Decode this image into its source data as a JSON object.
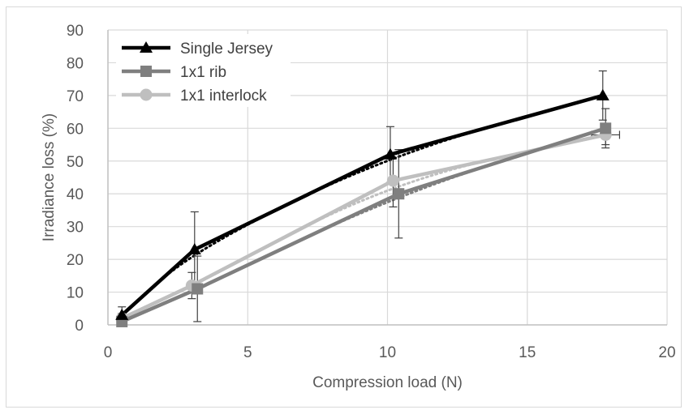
{
  "chart_data": {
    "type": "line",
    "title": "",
    "xlabel": "Compression load (N)",
    "ylabel": "Irradiance loss (%)",
    "xlim": [
      0,
      20
    ],
    "ylim": [
      0,
      90
    ],
    "xticks": [
      0,
      5,
      10,
      15,
      20
    ],
    "yticks": [
      0,
      10,
      20,
      30,
      40,
      50,
      60,
      70,
      80,
      90
    ],
    "grid": "on",
    "legend_position": "top-left",
    "series": [
      {
        "name": "Single Jersey",
        "color": "#000000",
        "marker": "triangle",
        "x": [
          0.5,
          3.1,
          10.1,
          17.7
        ],
        "y": [
          3,
          23,
          52,
          70
        ],
        "err_y": [
          2.5,
          11.5,
          8.5,
          7.5
        ],
        "trendline": "dotted"
      },
      {
        "name": "1x1 rib",
        "color": "#7f7f7f",
        "marker": "square",
        "x": [
          0.5,
          3.2,
          10.4,
          17.8
        ],
        "y": [
          1,
          11,
          40,
          60
        ],
        "err_y": [
          1,
          10,
          13.5,
          6
        ],
        "trendline": "dotted"
      },
      {
        "name": "1x1 interlock",
        "color": "#bfbfbf",
        "marker": "circle",
        "x": [
          0.5,
          3.0,
          10.2,
          17.8
        ],
        "y": [
          2,
          12,
          44,
          58
        ],
        "err_y": [
          1.5,
          4,
          8,
          3
        ],
        "err_x": [
          0,
          0,
          0,
          0.5
        ],
        "trendline": "dotted"
      }
    ]
  }
}
